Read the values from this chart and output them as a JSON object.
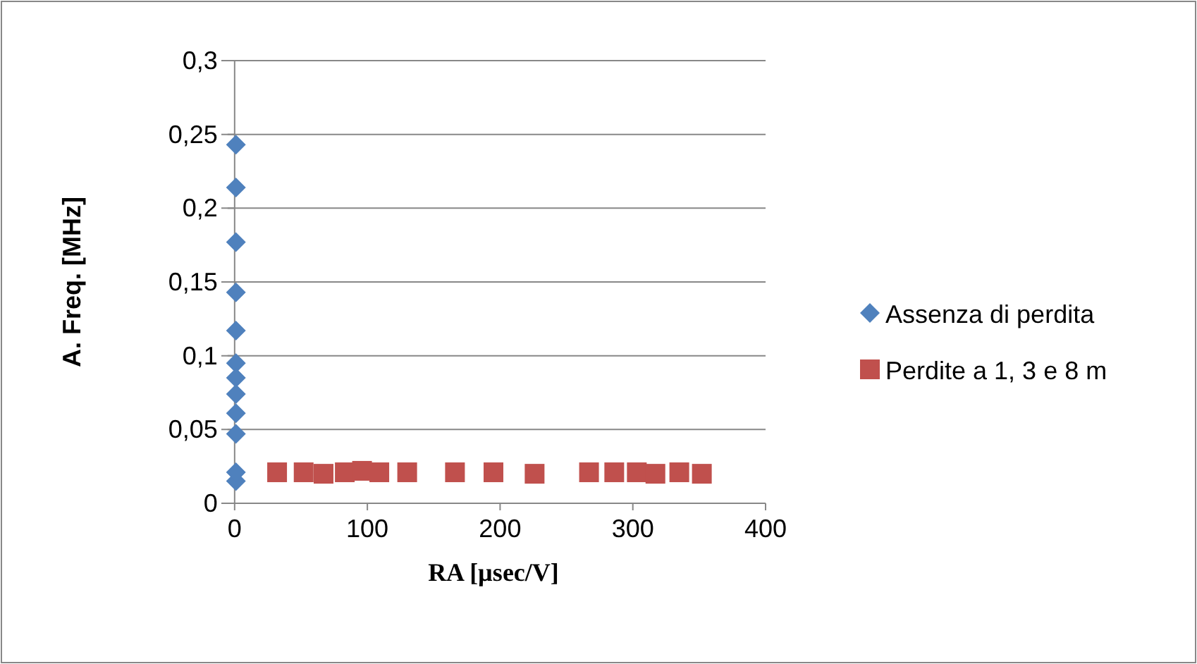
{
  "chart_data": {
    "type": "scatter",
    "xlabel": "RA [µsec/V]",
    "ylabel": "A. Freq. [MHz]",
    "xlim": [
      -10,
      400
    ],
    "xticks": [
      0,
      100,
      200,
      300,
      400
    ],
    "ylim": [
      0,
      0.3
    ],
    "yticks": [
      {
        "value": 0,
        "label": "0"
      },
      {
        "value": 0.05,
        "label": "0,05"
      },
      {
        "value": 0.1,
        "label": "0,1"
      },
      {
        "value": 0.15,
        "label": "0,15"
      },
      {
        "value": 0.2,
        "label": "0,2"
      },
      {
        "value": 0.25,
        "label": "0,25"
      },
      {
        "value": 0.3,
        "label": "0,3"
      }
    ],
    "grid": "y",
    "legend": "right",
    "series": [
      {
        "name": "Assenza di perdita",
        "color": "#4f81bd",
        "marker": "diamond",
        "x": [
          1,
          1,
          1,
          1,
          1,
          1,
          1,
          1,
          1,
          1,
          1,
          1
        ],
        "values": [
          0.243,
          0.214,
          0.177,
          0.143,
          0.117,
          0.095,
          0.085,
          0.074,
          0.061,
          0.047,
          0.015,
          0.021
        ]
      },
      {
        "name": "Perdite a 1, 3 e 8 m",
        "color": "#c0504d",
        "marker": "square",
        "x": [
          32,
          52,
          67,
          83,
          96,
          109,
          130,
          166,
          195,
          226,
          267,
          286,
          303,
          317,
          335,
          352
        ],
        "values": [
          0.021,
          0.021,
          0.02,
          0.021,
          0.022,
          0.021,
          0.021,
          0.021,
          0.021,
          0.02,
          0.021,
          0.021,
          0.021,
          0.02,
          0.021,
          0.02
        ]
      }
    ]
  }
}
